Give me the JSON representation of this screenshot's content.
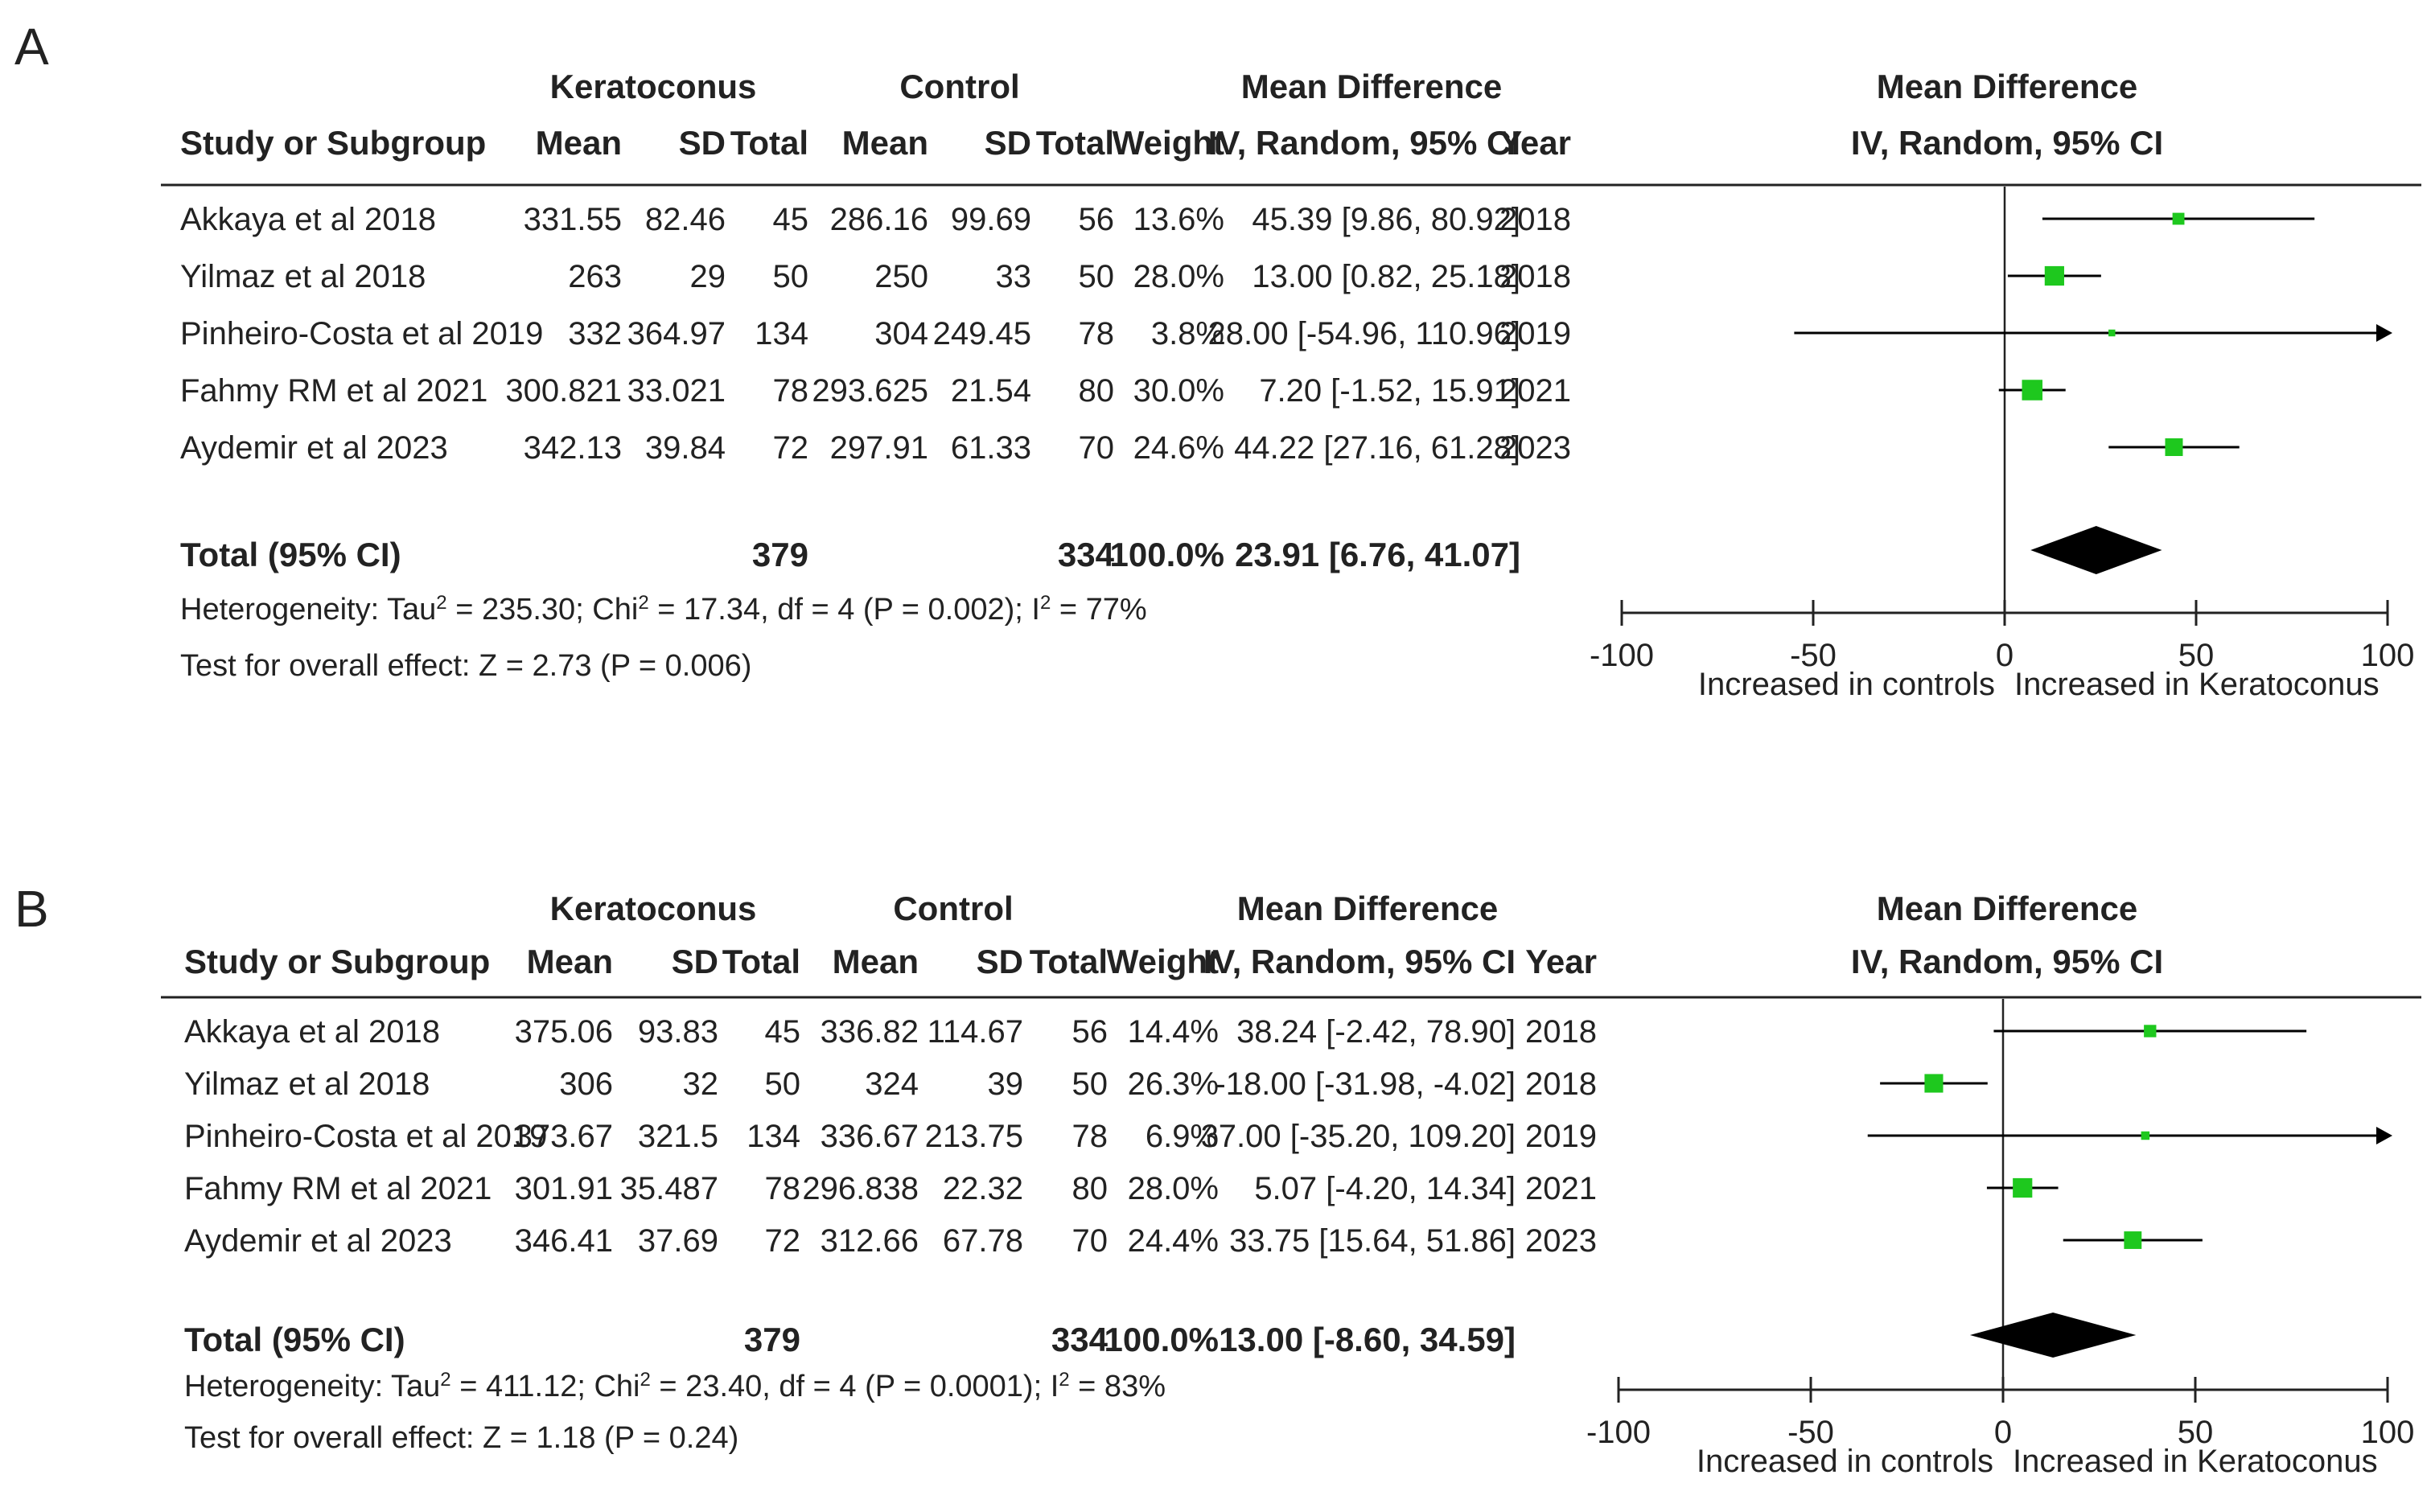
{
  "chart_data": [
    {
      "type": "forest",
      "panel_label": "A",
      "header": {
        "group1": "Keratoconus",
        "group2": "Control",
        "md_header": "Mean Difference",
        "md_sub": "IV, Random, 95% CI",
        "study": "Study or Subgroup",
        "mean": "Mean",
        "sd": "SD",
        "total": "Total",
        "weight": "Weight",
        "year": "Year"
      },
      "studies": [
        {
          "name": "Akkaya et al 2018",
          "kc_mean": "331.55",
          "kc_sd": "82.46",
          "kc_total": "45",
          "c_mean": "286.16",
          "c_sd": "99.69",
          "c_total": "56",
          "weight": "13.6%",
          "ci_text": "45.39 [9.86, 80.92]",
          "year": "2018",
          "md": 45.39,
          "lo": 9.86,
          "hi": 80.92,
          "w": 13.6
        },
        {
          "name": "Yilmaz et al 2018",
          "kc_mean": "263",
          "kc_sd": "29",
          "kc_total": "50",
          "c_mean": "250",
          "c_sd": "33",
          "c_total": "50",
          "weight": "28.0%",
          "ci_text": "13.00 [0.82, 25.18]",
          "year": "2018",
          "md": 13.0,
          "lo": 0.82,
          "hi": 25.18,
          "w": 28.0
        },
        {
          "name": "Pinheiro-Costa et al 2019",
          "kc_mean": "332",
          "kc_sd": "364.97",
          "kc_total": "134",
          "c_mean": "304",
          "c_sd": "249.45",
          "c_total": "78",
          "weight": "3.8%",
          "ci_text": "28.00 [-54.96, 110.96]",
          "year": "2019",
          "md": 28.0,
          "lo": -54.96,
          "hi": 110.96,
          "w": 3.8
        },
        {
          "name": "Fahmy RM et al 2021",
          "kc_mean": "300.821",
          "kc_sd": "33.021",
          "kc_total": "78",
          "c_mean": "293.625",
          "c_sd": "21.54",
          "c_total": "80",
          "weight": "30.0%",
          "ci_text": "7.20 [-1.52, 15.91]",
          "year": "2021",
          "md": 7.2,
          "lo": -1.52,
          "hi": 15.91,
          "w": 30.0
        },
        {
          "name": "Aydemir et al 2023",
          "kc_mean": "342.13",
          "kc_sd": "39.84",
          "kc_total": "72",
          "c_mean": "297.91",
          "c_sd": "61.33",
          "c_total": "70",
          "weight": "24.6%",
          "ci_text": "44.22 [27.16, 61.28]",
          "year": "2023",
          "md": 44.22,
          "lo": 27.16,
          "hi": 61.28,
          "w": 24.6
        }
      ],
      "total": {
        "label": "Total (95% CI)",
        "kc_total": "379",
        "c_total": "334",
        "weight": "100.0%",
        "ci_text": "23.91 [6.76, 41.07]",
        "md": 23.91,
        "lo": 6.76,
        "hi": 41.07
      },
      "heterogeneity": {
        "prefix": "Heterogeneity: Tau",
        "tau2": " = 235.30; Chi",
        "chi2": " = 17.34, df = 4 (P = 0.002); I",
        "i2": " = 77%",
        "sup": "2"
      },
      "overall": "Test for overall effect: Z = 2.73 (P = 0.006)",
      "axis": {
        "min": -100,
        "max": 100,
        "ticks": [
          -100,
          -50,
          0,
          50,
          100
        ],
        "tick_labels": [
          "-100",
          "-50",
          "0",
          "50",
          "100"
        ]
      },
      "favours_left": "Increased in controls",
      "favours_right": "Increased in Keratoconus"
    },
    {
      "type": "forest",
      "panel_label": "B",
      "header": {
        "group1": "Keratoconus",
        "group2": "Control",
        "md_header": "Mean Difference",
        "md_sub": "IV, Random, 95% CI",
        "study": "Study or Subgroup",
        "mean": "Mean",
        "sd": "SD",
        "total": "Total",
        "weight": "Weight",
        "year": "Year"
      },
      "studies": [
        {
          "name": "Akkaya et al 2018",
          "kc_mean": "375.06",
          "kc_sd": "93.83",
          "kc_total": "45",
          "c_mean": "336.82",
          "c_sd": "114.67",
          "c_total": "56",
          "weight": "14.4%",
          "ci_text": "38.24 [-2.42, 78.90]",
          "year": "2018",
          "md": 38.24,
          "lo": -2.42,
          "hi": 78.9,
          "w": 14.4
        },
        {
          "name": "Yilmaz et al 2018",
          "kc_mean": "306",
          "kc_sd": "32",
          "kc_total": "50",
          "c_mean": "324",
          "c_sd": "39",
          "c_total": "50",
          "weight": "26.3%",
          "ci_text": "-18.00 [-31.98, -4.02]",
          "year": "2018",
          "md": -18.0,
          "lo": -31.98,
          "hi": -4.02,
          "w": 26.3
        },
        {
          "name": "Pinheiro-Costa et al 2019",
          "kc_mean": "373.67",
          "kc_sd": "321.5",
          "kc_total": "134",
          "c_mean": "336.67",
          "c_sd": "213.75",
          "c_total": "78",
          "weight": "6.9%",
          "ci_text": "37.00 [-35.20, 109.20]",
          "year": "2019",
          "md": 37.0,
          "lo": -35.2,
          "hi": 109.2,
          "w": 6.9
        },
        {
          "name": "Fahmy RM et al 2021",
          "kc_mean": "301.91",
          "kc_sd": "35.487",
          "kc_total": "78",
          "c_mean": "296.838",
          "c_sd": "22.32",
          "c_total": "80",
          "weight": "28.0%",
          "ci_text": "5.07 [-4.20, 14.34]",
          "year": "2021",
          "md": 5.07,
          "lo": -4.2,
          "hi": 14.34,
          "w": 28.0
        },
        {
          "name": "Aydemir et al 2023",
          "kc_mean": "346.41",
          "kc_sd": "37.69",
          "kc_total": "72",
          "c_mean": "312.66",
          "c_sd": "67.78",
          "c_total": "70",
          "weight": "24.4%",
          "ci_text": "33.75 [15.64, 51.86]",
          "year": "2023",
          "md": 33.75,
          "lo": 15.64,
          "hi": 51.86,
          "w": 24.4
        }
      ],
      "total": {
        "label": "Total (95% CI)",
        "kc_total": "379",
        "c_total": "334",
        "weight": "100.0%",
        "ci_text": "13.00 [-8.60, 34.59]",
        "md": 13.0,
        "lo": -8.6,
        "hi": 34.59
      },
      "heterogeneity": {
        "prefix": "Heterogeneity: Tau",
        "tau2": " = 411.12; Chi",
        "chi2": " = 23.40, df = 4 (P = 0.0001); I",
        "i2": " = 83%",
        "sup": "2"
      },
      "overall": "Test for overall effect: Z = 1.18 (P = 0.24)",
      "axis": {
        "min": -100,
        "max": 100,
        "ticks": [
          -100,
          -50,
          0,
          50,
          100
        ],
        "tick_labels": [
          "-100",
          "-50",
          "0",
          "50",
          "100"
        ]
      },
      "favours_left": "Increased in controls",
      "favours_right": "Increased in Keratoconus"
    }
  ],
  "colors": {
    "marker": "#1ec81e",
    "line": "#000000",
    "diamond": "#000000",
    "text": "#222222"
  }
}
